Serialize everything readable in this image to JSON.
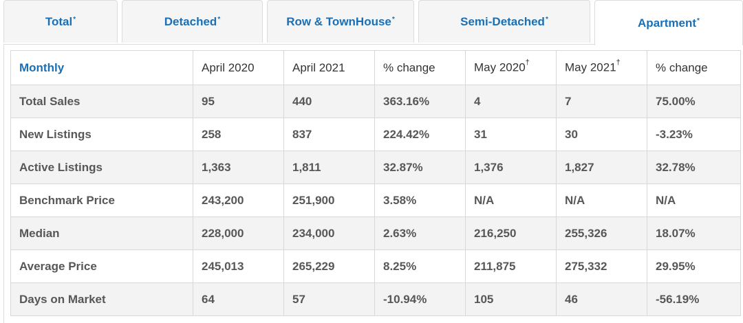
{
  "tabs": [
    {
      "label": "Total",
      "mark": "*"
    },
    {
      "label": "Detached",
      "mark": "*"
    },
    {
      "label": "Row & TownHouse",
      "mark": "*"
    },
    {
      "label": "Semi-Detached",
      "mark": "*"
    },
    {
      "label": "Apartment",
      "mark": "*"
    }
  ],
  "table": {
    "headers": [
      {
        "label": "Monthly",
        "mark": ""
      },
      {
        "label": "April 2020",
        "mark": ""
      },
      {
        "label": "April 2021",
        "mark": ""
      },
      {
        "label": "% change",
        "mark": ""
      },
      {
        "label": "May 2020",
        "mark": "†"
      },
      {
        "label": "May 2021",
        "mark": "†"
      },
      {
        "label": "% change",
        "mark": ""
      }
    ],
    "rows": [
      [
        "Total Sales",
        "95",
        "440",
        "363.16%",
        "4",
        "7",
        "75.00%"
      ],
      [
        "New Listings",
        "258",
        "837",
        "224.42%",
        "31",
        "30",
        "-3.23%"
      ],
      [
        "Active Listings",
        "1,363",
        "1,811",
        "32.87%",
        "1,376",
        "1,827",
        "32.78%"
      ],
      [
        "Benchmark Price",
        "243,200",
        "251,900",
        "3.58%",
        "N/A",
        "N/A",
        "N/A"
      ],
      [
        "Median",
        "228,000",
        "234,000",
        "2.63%",
        "216,250",
        "255,326",
        "18.07%"
      ],
      [
        "Average Price",
        "245,013",
        "265,229",
        "8.25%",
        "211,875",
        "275,332",
        "29.95%"
      ],
      [
        "Days on Market",
        "64",
        "57",
        "-10.94%",
        "105",
        "46",
        "-56.19%"
      ]
    ]
  }
}
